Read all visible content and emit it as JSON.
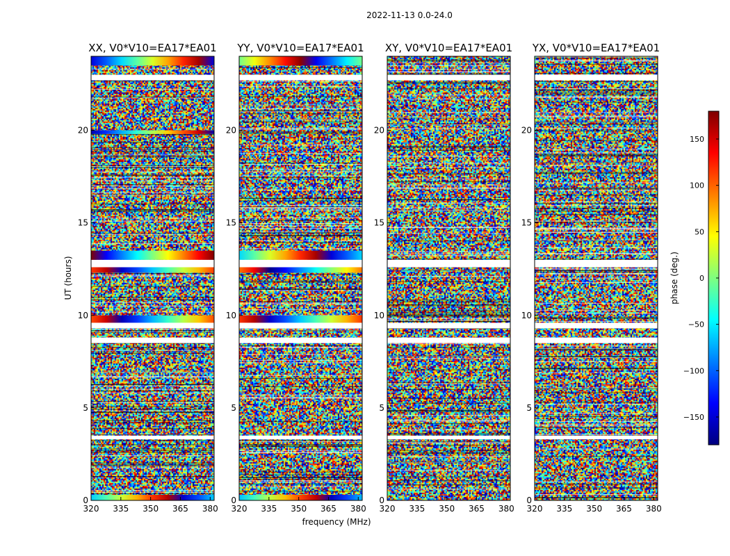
{
  "figure": {
    "suptitle": "2022-11-13 0.0-24.0",
    "xlabel": "frequency (MHz)",
    "ylabel": "UT (hours)"
  },
  "colorbar": {
    "label": "phase (deg.)",
    "range": [
      -180,
      180
    ],
    "ticks": [
      -150,
      -100,
      -50,
      0,
      50,
      100,
      150
    ],
    "tick_labels": [
      "−150",
      "−100",
      "−50",
      "0",
      "50",
      "100",
      "150"
    ],
    "colormap": "jet",
    "colors": [
      "#00007f",
      "#0000ff",
      "#007fff",
      "#00ffff",
      "#7fff7f",
      "#ffff00",
      "#ff7f00",
      "#ff0000",
      "#7f0000"
    ]
  },
  "chart_data": [
    {
      "type": "heatmap",
      "title": "XX, V0*V10=EA17*EA01",
      "xlabel": "frequency (MHz)",
      "ylabel": "UT (hours)",
      "xlim": [
        320,
        382
      ],
      "ylim": [
        0,
        24
      ],
      "xticks": [
        320,
        335,
        350,
        365,
        380
      ],
      "yticks": [
        0,
        5,
        10,
        15,
        20
      ],
      "value_range": [
        -180,
        180
      ],
      "coherent_bands": [
        [
          23.5,
          24.0
        ],
        [
          19.8,
          20.0
        ],
        [
          13.0,
          13.5
        ],
        [
          12.3,
          12.6
        ],
        [
          9.6,
          10.0
        ],
        [
          0.0,
          0.3
        ]
      ],
      "blank_bands": [
        [
          22.7,
          23.0
        ],
        [
          12.6,
          13.0
        ],
        [
          9.3,
          9.6
        ],
        [
          8.5,
          8.8
        ],
        [
          3.3,
          3.5
        ]
      ]
    },
    {
      "type": "heatmap",
      "title": "YY, V0*V10=EA17*EA01",
      "xlabel": "frequency (MHz)",
      "ylabel": "UT (hours)",
      "xlim": [
        320,
        382
      ],
      "ylim": [
        0,
        24
      ],
      "xticks": [
        320,
        335,
        350,
        365,
        380
      ],
      "yticks": [
        0,
        5,
        10,
        15,
        20
      ],
      "value_range": [
        -180,
        180
      ],
      "coherent_bands": [
        [
          23.5,
          24.0
        ],
        [
          13.0,
          13.5
        ],
        [
          12.3,
          12.6
        ],
        [
          9.6,
          10.0
        ],
        [
          0.0,
          0.3
        ]
      ],
      "blank_bands": [
        [
          22.7,
          23.0
        ],
        [
          12.6,
          13.0
        ],
        [
          9.3,
          9.6
        ],
        [
          8.5,
          8.8
        ],
        [
          3.3,
          3.5
        ]
      ]
    },
    {
      "type": "heatmap",
      "title": "XY, V0*V10=EA17*EA01",
      "xlabel": "frequency (MHz)",
      "ylabel": "UT (hours)",
      "xlim": [
        320,
        382
      ],
      "ylim": [
        0,
        24
      ],
      "xticks": [
        320,
        335,
        350,
        365,
        380
      ],
      "yticks": [
        0,
        5,
        10,
        15,
        20
      ],
      "value_range": [
        -180,
        180
      ],
      "coherent_bands": [],
      "blank_bands": [
        [
          22.7,
          23.0
        ],
        [
          12.6,
          13.0
        ],
        [
          9.3,
          9.6
        ],
        [
          8.5,
          8.8
        ],
        [
          3.3,
          3.5
        ]
      ]
    },
    {
      "type": "heatmap",
      "title": "YX, V0*V10=EA17*EA01",
      "xlabel": "frequency (MHz)",
      "ylabel": "UT (hours)",
      "xlim": [
        320,
        382
      ],
      "ylim": [
        0,
        24
      ],
      "xticks": [
        320,
        335,
        350,
        365,
        380
      ],
      "yticks": [
        0,
        5,
        10,
        15,
        20
      ],
      "value_range": [
        -180,
        180
      ],
      "coherent_bands": [],
      "blank_bands": [
        [
          22.7,
          23.0
        ],
        [
          12.6,
          13.0
        ],
        [
          9.3,
          9.6
        ],
        [
          8.5,
          8.8
        ],
        [
          3.3,
          3.5
        ]
      ]
    }
  ]
}
